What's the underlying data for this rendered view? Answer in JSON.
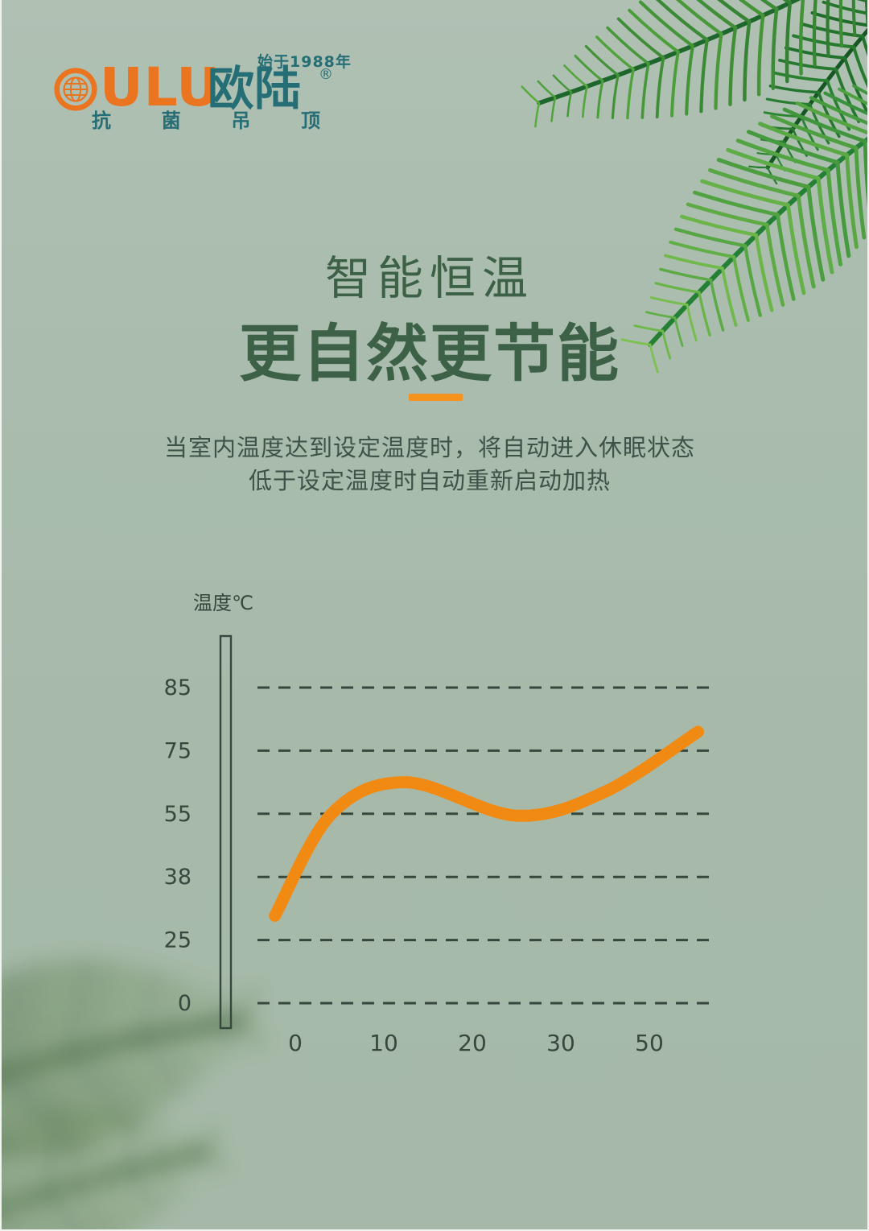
{
  "colors": {
    "background": "#a9bcae",
    "teal": "#266e76",
    "logo_orange": "#ea7420",
    "accent_orange": "#f6921e",
    "heading_green": "#3d6147",
    "body_text_green": "#3d5348",
    "chart_ink": "#36473d"
  },
  "brand": {
    "since_label": "始于1988年",
    "name": "OULU",
    "name_after_globe": "ULU",
    "name_cn": "欧陆",
    "registered_mark": "®",
    "tagline": "抗菌吊顶"
  },
  "hero": {
    "title": "智能恒温",
    "subtitle": "更自然更节能",
    "description_line1": "当室内温度达到设定温度时，将自动进入休眠状态",
    "description_line2": "低于设定温度时自动重新启动加热"
  },
  "chart_data": {
    "type": "line",
    "y_axis_label": "温度℃",
    "y_ticks": [
      85,
      75,
      55,
      38,
      25,
      0
    ],
    "x_ticks": [
      0,
      10,
      20,
      30,
      50
    ],
    "grid": "horizontal-dashed",
    "legend": "none",
    "line_color": "#f18a12",
    "series": [
      {
        "points": [
          {
            "x_pos": -0.23,
            "temp": 30
          },
          {
            "x_pos": 0.41,
            "temp": 55
          },
          {
            "x_pos": 1.25,
            "temp": 65
          },
          {
            "x_pos": 2.5,
            "temp": 54.5
          },
          {
            "x_pos": 3.5,
            "temp": 62
          },
          {
            "x_pos": 4.55,
            "temp": 78
          }
        ]
      }
    ]
  }
}
